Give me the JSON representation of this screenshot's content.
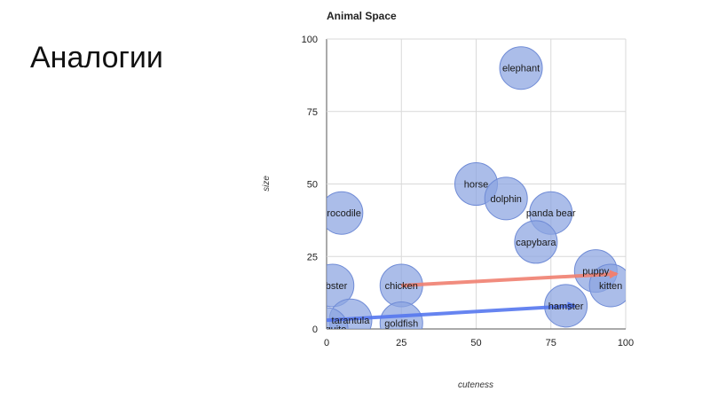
{
  "slide": {
    "title": "Аналогии"
  },
  "chart_data": {
    "type": "scatter",
    "title": "Animal Space",
    "xlabel": "cuteness",
    "ylabel": "size",
    "xlim": [
      0,
      100
    ],
    "ylim": [
      0,
      100
    ],
    "xticks": [
      0,
      25,
      50,
      75,
      100
    ],
    "yticks": [
      0,
      25,
      50,
      75,
      100
    ],
    "grid": true,
    "bubble_color": "#8aa4e0",
    "points": [
      {
        "label": "elephant",
        "x": 65,
        "y": 90
      },
      {
        "label": "horse",
        "x": 50,
        "y": 50
      },
      {
        "label": "dolphin",
        "x": 60,
        "y": 45
      },
      {
        "label": "panda bear",
        "x": 75,
        "y": 40
      },
      {
        "label": "crocodile",
        "x": 5,
        "y": 40
      },
      {
        "label": "capybara",
        "x": 70,
        "y": 30
      },
      {
        "label": "puppy",
        "x": 90,
        "y": 20
      },
      {
        "label": "kitten",
        "x": 95,
        "y": 15
      },
      {
        "label": "lobster",
        "x": 2,
        "y": 15
      },
      {
        "label": "chicken",
        "x": 25,
        "y": 15
      },
      {
        "label": "hamster",
        "x": 80,
        "y": 8
      },
      {
        "label": "tarantula",
        "x": 8,
        "y": 3
      },
      {
        "label": "goldfish",
        "x": 25,
        "y": 2
      },
      {
        "label": "mosquito",
        "x": 0,
        "y": 0
      }
    ],
    "arrows": [
      {
        "name": "chicken-to-kitten",
        "color": "#f08070",
        "from": [
          25,
          15
        ],
        "to": [
          97,
          19
        ]
      },
      {
        "name": "mosquito-to-hamster",
        "color": "#5577ee",
        "from": [
          0,
          3
        ],
        "to": [
          83,
          8
        ]
      }
    ]
  }
}
